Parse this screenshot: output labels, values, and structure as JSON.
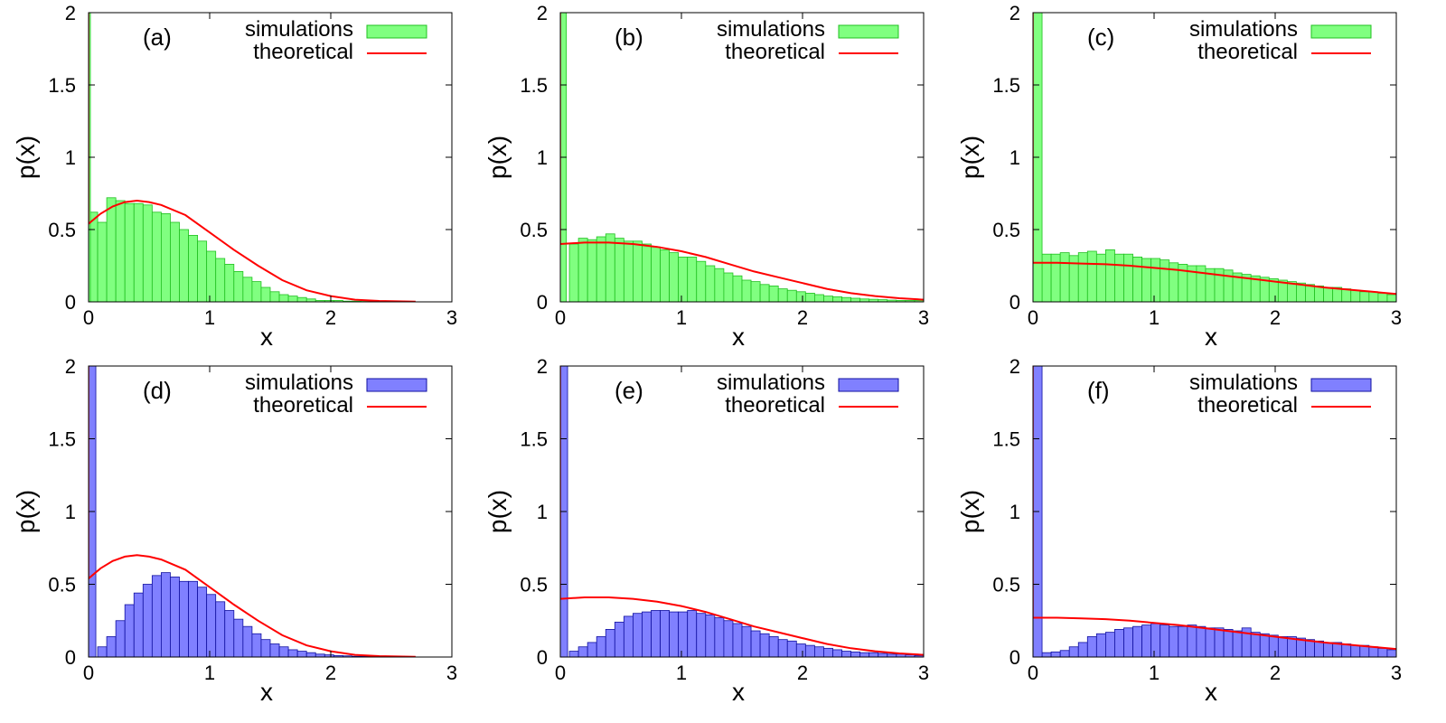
{
  "colors": {
    "green_fill": "#80ff80",
    "green_stroke": "#20c020",
    "blue_fill": "#8080ff",
    "blue_stroke": "#1010a0",
    "theory_line": "#ff0000",
    "axis": "#000000"
  },
  "chart_data": [
    {
      "type": "bar",
      "panel": "(a)",
      "xlabel": "x",
      "ylabel": "p(x)",
      "xlim": [
        0,
        3
      ],
      "ylim": [
        0,
        2
      ],
      "xticks": [
        "0",
        "1",
        "2",
        "3"
      ],
      "yticks": [
        "0",
        "0.5",
        "1",
        "1.5",
        "2"
      ],
      "legend": {
        "placement": "top-right",
        "entries": [
          "simulations",
          "theoretical"
        ]
      },
      "hist_color": "green",
      "bin_width": 0.075,
      "spike": {
        "x": [
          0,
          0.015
        ],
        "value": 2
      },
      "series": [
        {
          "name": "simulations",
          "type": "histogram",
          "values": [
            0.62,
            0.55,
            0.72,
            0.7,
            0.68,
            0.68,
            0.67,
            0.62,
            0.61,
            0.55,
            0.5,
            0.46,
            0.42,
            0.35,
            0.3,
            0.26,
            0.21,
            0.17,
            0.14,
            0.1,
            0.07,
            0.05,
            0.04,
            0.03,
            0.02,
            0.01,
            0.01,
            0.01,
            0.005,
            0.005,
            0.003,
            0.002,
            0.002,
            0.001,
            0.001,
            0,
            0,
            0,
            0,
            0
          ]
        },
        {
          "name": "theoretical",
          "type": "line",
          "x": [
            0,
            0.1,
            0.2,
            0.3,
            0.4,
            0.5,
            0.6,
            0.8,
            1.0,
            1.2,
            1.4,
            1.6,
            1.8,
            2.0,
            2.2,
            2.4,
            2.7
          ],
          "y": [
            0.54,
            0.61,
            0.66,
            0.69,
            0.7,
            0.69,
            0.67,
            0.6,
            0.48,
            0.36,
            0.25,
            0.15,
            0.08,
            0.04,
            0.015,
            0.006,
            0.002
          ]
        }
      ]
    },
    {
      "type": "bar",
      "panel": "(b)",
      "xlabel": "x",
      "ylabel": "p(x)",
      "xlim": [
        0,
        3
      ],
      "ylim": [
        0,
        2
      ],
      "xticks": [
        "0",
        "1",
        "2",
        "3"
      ],
      "yticks": [
        "0",
        "0.5",
        "1",
        "1.5",
        "2"
      ],
      "legend": {
        "placement": "top-right",
        "entries": [
          "simulations",
          "theoretical"
        ]
      },
      "hist_color": "green",
      "bin_width": 0.075,
      "spike": {
        "x": [
          0,
          0.05
        ],
        "value": 2
      },
      "series": [
        {
          "name": "simulations",
          "type": "histogram",
          "values": [
            0,
            0.4,
            0.44,
            0.43,
            0.45,
            0.47,
            0.44,
            0.42,
            0.42,
            0.4,
            0.38,
            0.36,
            0.34,
            0.31,
            0.31,
            0.28,
            0.25,
            0.23,
            0.2,
            0.18,
            0.15,
            0.14,
            0.12,
            0.11,
            0.09,
            0.08,
            0.07,
            0.06,
            0.05,
            0.04,
            0.035,
            0.03,
            0.025,
            0.02,
            0.018,
            0.015,
            0.012,
            0.01,
            0.01,
            0.01
          ]
        },
        {
          "name": "theoretical",
          "type": "line",
          "x": [
            0,
            0.2,
            0.4,
            0.6,
            0.8,
            1.0,
            1.2,
            1.4,
            1.6,
            1.8,
            2.0,
            2.2,
            2.4,
            2.6,
            2.8,
            3.0
          ],
          "y": [
            0.4,
            0.41,
            0.41,
            0.4,
            0.38,
            0.35,
            0.31,
            0.26,
            0.21,
            0.17,
            0.13,
            0.09,
            0.06,
            0.04,
            0.025,
            0.015
          ]
        }
      ]
    },
    {
      "type": "bar",
      "panel": "(c)",
      "xlabel": "x",
      "ylabel": "p(x)",
      "xlim": [
        0,
        3
      ],
      "ylim": [
        0,
        2
      ],
      "xticks": [
        "0",
        "1",
        "2",
        "3"
      ],
      "yticks": [
        "0",
        "0.5",
        "1",
        "1.5",
        "2"
      ],
      "legend": {
        "placement": "top-right",
        "entries": [
          "simulations",
          "theoretical"
        ]
      },
      "hist_color": "green",
      "bin_width": 0.075,
      "spike": {
        "x": [
          0,
          0.075
        ],
        "value": 2
      },
      "series": [
        {
          "name": "simulations",
          "type": "histogram",
          "values": [
            0,
            0.33,
            0.33,
            0.34,
            0.32,
            0.34,
            0.35,
            0.33,
            0.36,
            0.33,
            0.33,
            0.31,
            0.3,
            0.3,
            0.29,
            0.27,
            0.26,
            0.25,
            0.25,
            0.23,
            0.23,
            0.22,
            0.2,
            0.19,
            0.18,
            0.17,
            0.16,
            0.15,
            0.14,
            0.13,
            0.12,
            0.11,
            0.1,
            0.1,
            0.09,
            0.08,
            0.07,
            0.07,
            0.06,
            0.05
          ]
        },
        {
          "name": "theoretical",
          "type": "line",
          "x": [
            0,
            0.2,
            0.4,
            0.6,
            0.8,
            1.0,
            1.2,
            1.4,
            1.6,
            1.8,
            2.0,
            2.2,
            2.4,
            2.6,
            2.8,
            3.0
          ],
          "y": [
            0.27,
            0.27,
            0.265,
            0.26,
            0.25,
            0.235,
            0.22,
            0.2,
            0.18,
            0.16,
            0.14,
            0.12,
            0.1,
            0.085,
            0.07,
            0.055
          ]
        }
      ]
    },
    {
      "type": "bar",
      "panel": "(d)",
      "xlabel": "x",
      "ylabel": "p(x)",
      "xlim": [
        0,
        3
      ],
      "ylim": [
        0,
        2
      ],
      "xticks": [
        "0",
        "1",
        "2",
        "3"
      ],
      "yticks": [
        "0",
        "0.5",
        "1",
        "1.5",
        "2"
      ],
      "legend": {
        "placement": "top-right",
        "entries": [
          "simulations",
          "theoretical"
        ]
      },
      "hist_color": "blue",
      "bin_width": 0.075,
      "spike": {
        "x": [
          0,
          0.06
        ],
        "value": 2
      },
      "series": [
        {
          "name": "simulations",
          "type": "histogram",
          "values": [
            0,
            0.07,
            0.14,
            0.25,
            0.36,
            0.44,
            0.5,
            0.56,
            0.58,
            0.55,
            0.52,
            0.52,
            0.48,
            0.43,
            0.38,
            0.32,
            0.26,
            0.21,
            0.16,
            0.12,
            0.09,
            0.07,
            0.05,
            0.04,
            0.03,
            0.02,
            0.015,
            0.01,
            0.008,
            0.005,
            0.004,
            0.003,
            0.002,
            0.002,
            0.001,
            0.001,
            0,
            0,
            0,
            0
          ]
        },
        {
          "name": "theoretical",
          "type": "line",
          "x": [
            0,
            0.1,
            0.2,
            0.3,
            0.4,
            0.5,
            0.6,
            0.8,
            1.0,
            1.2,
            1.4,
            1.6,
            1.8,
            2.0,
            2.2,
            2.4,
            2.7
          ],
          "y": [
            0.54,
            0.61,
            0.66,
            0.69,
            0.7,
            0.69,
            0.67,
            0.6,
            0.48,
            0.36,
            0.25,
            0.15,
            0.08,
            0.04,
            0.015,
            0.006,
            0.002
          ]
        }
      ]
    },
    {
      "type": "bar",
      "panel": "(e)",
      "xlabel": "x",
      "ylabel": "p(x)",
      "xlim": [
        0,
        3
      ],
      "ylim": [
        0,
        2
      ],
      "xticks": [
        "0",
        "1",
        "2",
        "3"
      ],
      "yticks": [
        "0",
        "0.5",
        "1",
        "1.5",
        "2"
      ],
      "legend": {
        "placement": "top-right",
        "entries": [
          "simulations",
          "theoretical"
        ]
      },
      "hist_color": "blue",
      "bin_width": 0.075,
      "spike": {
        "x": [
          0,
          0.06
        ],
        "value": 2
      },
      "series": [
        {
          "name": "simulations",
          "type": "histogram",
          "values": [
            0,
            0.04,
            0.07,
            0.1,
            0.14,
            0.19,
            0.24,
            0.28,
            0.3,
            0.31,
            0.32,
            0.32,
            0.31,
            0.31,
            0.32,
            0.3,
            0.29,
            0.27,
            0.25,
            0.23,
            0.21,
            0.18,
            0.16,
            0.14,
            0.12,
            0.11,
            0.09,
            0.08,
            0.07,
            0.06,
            0.05,
            0.04,
            0.035,
            0.03,
            0.03,
            0.025,
            0.02,
            0.02,
            0.015,
            0.01
          ]
        },
        {
          "name": "theoretical",
          "type": "line",
          "x": [
            0,
            0.2,
            0.4,
            0.6,
            0.8,
            1.0,
            1.2,
            1.4,
            1.6,
            1.8,
            2.0,
            2.2,
            2.4,
            2.6,
            2.8,
            3.0
          ],
          "y": [
            0.4,
            0.41,
            0.41,
            0.4,
            0.38,
            0.35,
            0.31,
            0.26,
            0.21,
            0.17,
            0.13,
            0.09,
            0.06,
            0.04,
            0.025,
            0.015
          ]
        }
      ]
    },
    {
      "type": "bar",
      "panel": "(f)",
      "xlabel": "x",
      "ylabel": "p(x)",
      "xlim": [
        0,
        3
      ],
      "ylim": [
        0,
        2
      ],
      "xticks": [
        "0",
        "1",
        "2",
        "3"
      ],
      "yticks": [
        "0",
        "0.5",
        "1",
        "1.5",
        "2"
      ],
      "legend": {
        "placement": "top-right",
        "entries": [
          "simulations",
          "theoretical"
        ]
      },
      "hist_color": "blue",
      "bin_width": 0.075,
      "spike": {
        "x": [
          0,
          0.075
        ],
        "value": 2
      },
      "series": [
        {
          "name": "simulations",
          "type": "histogram",
          "values": [
            0,
            0.03,
            0.035,
            0.045,
            0.07,
            0.1,
            0.14,
            0.16,
            0.17,
            0.19,
            0.2,
            0.21,
            0.22,
            0.23,
            0.22,
            0.21,
            0.21,
            0.22,
            0.21,
            0.2,
            0.2,
            0.19,
            0.18,
            0.2,
            0.17,
            0.16,
            0.15,
            0.14,
            0.14,
            0.13,
            0.12,
            0.11,
            0.1,
            0.1,
            0.09,
            0.08,
            0.08,
            0.07,
            0.06,
            0.05
          ]
        },
        {
          "name": "theoretical",
          "type": "line",
          "x": [
            0,
            0.2,
            0.4,
            0.6,
            0.8,
            1.0,
            1.2,
            1.4,
            1.6,
            1.8,
            2.0,
            2.2,
            2.4,
            2.6,
            2.8,
            3.0
          ],
          "y": [
            0.27,
            0.27,
            0.265,
            0.26,
            0.25,
            0.235,
            0.22,
            0.2,
            0.18,
            0.16,
            0.14,
            0.12,
            0.1,
            0.085,
            0.07,
            0.055
          ]
        }
      ]
    }
  ]
}
